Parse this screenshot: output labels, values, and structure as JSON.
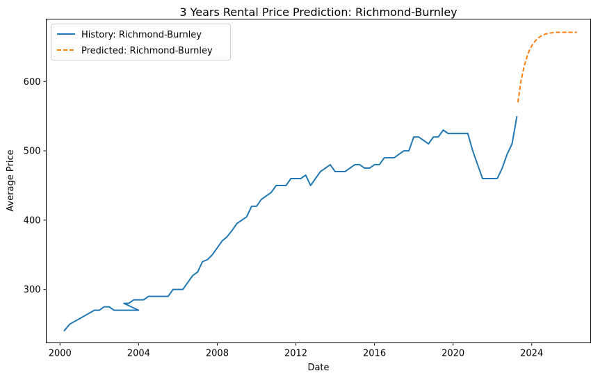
{
  "chart_data": {
    "type": "line",
    "title": "3 Years Rental Price Prediction: Richmond-Burnley",
    "xlabel": "Date",
    "ylabel": "Average Price",
    "xlim": [
      1999.3,
      2027.0
    ],
    "ylim": [
      223,
      690
    ],
    "x_ticks": [
      2000,
      2004,
      2008,
      2012,
      2016,
      2020,
      2024
    ],
    "y_ticks": [
      300,
      400,
      500,
      600
    ],
    "grid": false,
    "legend_placement": "top-left",
    "series": [
      {
        "name": "History: Richmond-Burnley",
        "style": "solid",
        "color": "#1f77b4",
        "x": [
          2000.2,
          2000.5,
          2001.0,
          2001.5,
          2001.75,
          2002.0,
          2002.25,
          2002.5,
          2002.75,
          2003.0,
          2003.25,
          2003.5,
          2003.75,
          2004.0,
          2003.25,
          2003.5,
          2003.75,
          2004.0,
          2004.25,
          2004.5,
          2004.75,
          2005.0,
          2005.25,
          2005.5,
          2005.75,
          2006.0,
          2006.25,
          2006.5,
          2006.75,
          2007.0,
          2007.25,
          2007.5,
          2007.75,
          2008.0,
          2008.25,
          2008.5,
          2008.75,
          2009.0,
          2009.25,
          2009.5,
          2009.75,
          2010.0,
          2010.25,
          2010.5,
          2010.75,
          2011.0,
          2011.25,
          2011.5,
          2011.75,
          2012.0,
          2012.25,
          2012.5,
          2012.75,
          2013.0,
          2013.25,
          2013.5,
          2013.75,
          2014.0,
          2014.25,
          2014.5,
          2014.75,
          2015.0,
          2015.25,
          2015.5,
          2015.75,
          2016.0,
          2016.25,
          2016.5,
          2016.75,
          2017.0,
          2017.25,
          2017.5,
          2017.75,
          2018.0,
          2018.25,
          2018.5,
          2018.75,
          2019.0,
          2019.25,
          2019.5,
          2019.75,
          2020.0,
          2020.25,
          2020.5,
          2020.75,
          2021.0,
          2021.25,
          2021.5,
          2021.75,
          2022.0,
          2022.25,
          2022.5,
          2022.75,
          2023.0,
          2023.25
        ],
        "y": [
          240,
          250,
          258,
          266,
          270,
          270,
          275,
          275,
          270,
          270,
          270,
          270,
          270,
          270,
          280,
          280,
          285,
          285,
          285,
          290,
          290,
          290,
          290,
          290,
          300,
          300,
          300,
          310,
          320,
          325,
          340,
          343,
          350,
          360,
          370,
          376,
          385,
          395,
          400,
          405,
          420,
          420,
          430,
          435,
          440,
          450,
          450,
          450,
          460,
          460,
          460,
          465,
          450,
          460,
          470,
          475,
          480,
          470,
          470,
          470,
          475,
          480,
          480,
          475,
          475,
          480,
          480,
          490,
          490,
          490,
          495,
          500,
          500,
          520,
          520,
          515,
          510,
          520,
          520,
          530,
          525,
          525,
          525,
          525,
          525,
          500,
          480,
          460,
          460,
          460,
          460,
          475,
          495,
          510,
          550
        ]
      },
      {
        "name": "Predicted: Richmond-Burnley",
        "style": "dashed",
        "color": "#ff7f0e",
        "x": [
          2023.3,
          2023.45,
          2023.6,
          2023.75,
          2023.9,
          2024.05,
          2024.2,
          2024.35,
          2024.5,
          2024.65,
          2024.8,
          2024.95,
          2025.1,
          2025.3,
          2025.5,
          2025.7,
          2025.9,
          2026.1,
          2026.3
        ],
        "y": [
          570,
          600,
          620,
          635,
          646,
          654,
          659,
          663,
          666,
          668,
          669,
          670,
          670.5,
          671,
          671,
          671,
          671,
          671,
          671
        ]
      }
    ]
  }
}
